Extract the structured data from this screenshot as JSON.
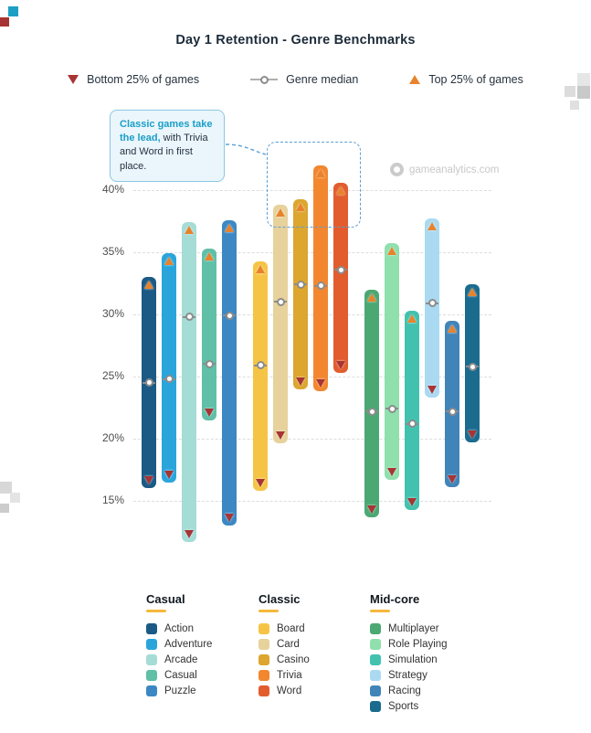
{
  "title": "Day 1 Retention - Genre Benchmarks",
  "top_legend": {
    "bottom": "Bottom 25% of games",
    "median": "Genre median",
    "top": "Top 25% of games"
  },
  "annotation": {
    "highlight": "Classic games take the lead,",
    "rest": " with Trivia and Word in first place."
  },
  "watermark": "gameanalytics.com",
  "chart_data": {
    "type": "range-bar",
    "title": "Day 1 Retention - Genre Benchmarks",
    "unit": "%",
    "ylim": [
      11,
      43
    ],
    "yticks": [
      15,
      20,
      25,
      30,
      35,
      40
    ],
    "grid": true,
    "legend_position": "bottom",
    "group_underline_color": "#f6b93d",
    "marker_legend": [
      {
        "marker": "triangle-down",
        "color": "#a83434",
        "label": "Bottom 25% of games"
      },
      {
        "marker": "circle",
        "color": "#8c8c8c",
        "label": "Genre median"
      },
      {
        "marker": "triangle-up",
        "color": "#e8832c",
        "label": "Top 25% of games"
      }
    ],
    "groups": [
      {
        "name": "Casual",
        "genres": [
          {
            "label": "Action",
            "color": "#1b5a85",
            "bottom25": 16.0,
            "median": 24.5,
            "top25": 33.0
          },
          {
            "label": "Adventure",
            "color": "#2aa5dc",
            "bottom25": 16.5,
            "median": 24.8,
            "top25": 34.9
          },
          {
            "label": "Arcade",
            "color": "#a5dcd6",
            "bottom25": 11.7,
            "median": 29.8,
            "top25": 37.4
          },
          {
            "label": "Casual",
            "color": "#5fbfa7",
            "bottom25": 21.5,
            "median": 26.0,
            "top25": 35.3
          },
          {
            "label": "Puzzle",
            "color": "#3c88c4",
            "bottom25": 13.0,
            "median": 29.9,
            "top25": 37.6
          }
        ]
      },
      {
        "name": "Classic",
        "genres": [
          {
            "label": "Board",
            "color": "#f6c445",
            "bottom25": 15.8,
            "median": 25.9,
            "top25": 34.3
          },
          {
            "label": "Card",
            "color": "#e7d29c",
            "bottom25": 19.6,
            "median": 31.0,
            "top25": 38.8
          },
          {
            "label": "Casino",
            "color": "#dca62f",
            "bottom25": 24.0,
            "median": 32.4,
            "top25": 39.3
          },
          {
            "label": "Trivia",
            "color": "#f2872f",
            "bottom25": 23.8,
            "median": 32.3,
            "top25": 42.0
          },
          {
            "label": "Word",
            "color": "#e25c2e",
            "bottom25": 25.3,
            "median": 33.6,
            "top25": 40.6
          }
        ]
      },
      {
        "name": "Mid-core",
        "genres": [
          {
            "label": "Multiplayer",
            "color": "#4ca873",
            "bottom25": 13.7,
            "median": 22.2,
            "top25": 32.0
          },
          {
            "label": "Role Playing",
            "color": "#8fe0ad",
            "bottom25": 16.7,
            "median": 22.4,
            "top25": 35.7
          },
          {
            "label": "Simulation",
            "color": "#42c2ae",
            "bottom25": 14.3,
            "median": 21.2,
            "top25": 30.3
          },
          {
            "label": "Strategy",
            "color": "#a9daf2",
            "bottom25": 23.3,
            "median": 30.9,
            "top25": 37.7
          },
          {
            "label": "Racing",
            "color": "#4184b8",
            "bottom25": 16.1,
            "median": 22.2,
            "top25": 29.5
          },
          {
            "label": "Sports",
            "color": "#1a6b8e",
            "bottom25": 19.7,
            "median": 25.8,
            "top25": 32.4
          }
        ]
      }
    ]
  }
}
